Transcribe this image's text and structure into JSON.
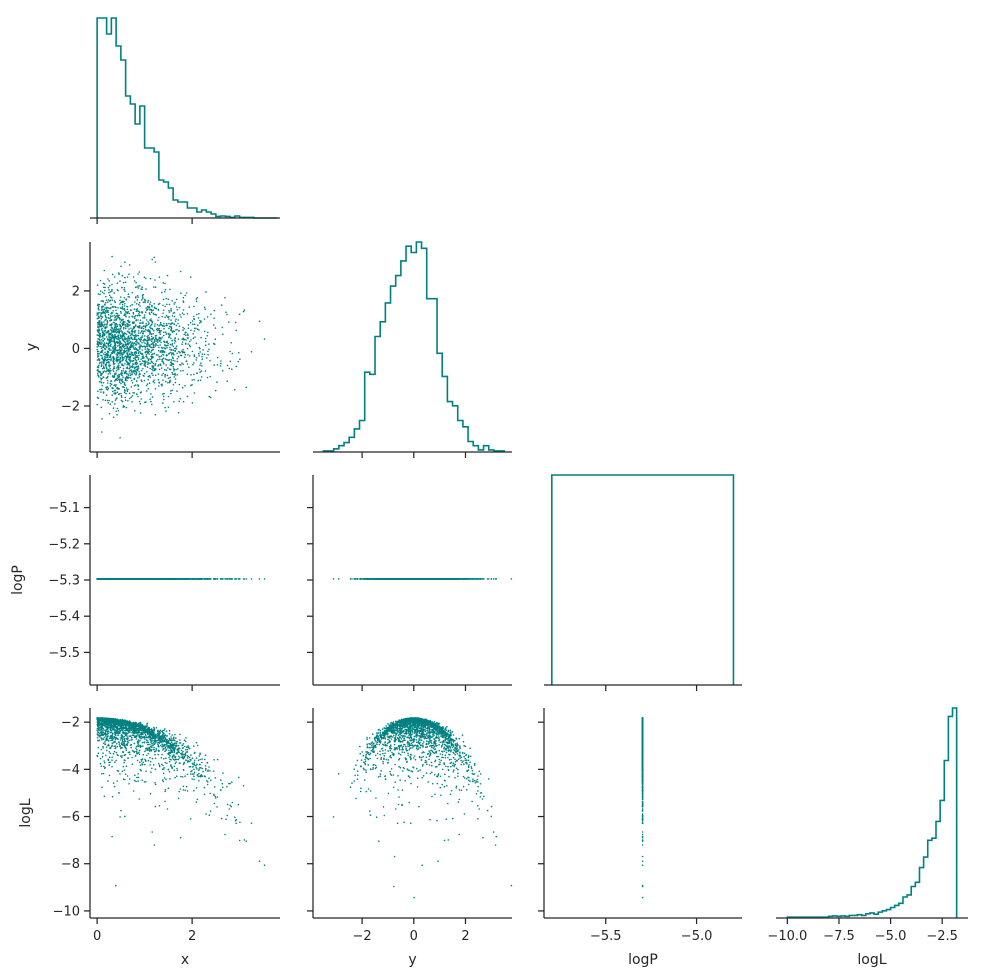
{
  "colors": {
    "series": "#008080",
    "axis": "#262626",
    "background": "#ffffff"
  },
  "chart_data": {
    "type": "scatter",
    "kind": "corner-pairplot",
    "variables": [
      "x",
      "y",
      "logP",
      "logL"
    ],
    "axis_labels": {
      "x_bottom": [
        "x",
        "y",
        "logP",
        "logL"
      ],
      "y_left": [
        "",
        "y",
        "logP",
        "logL"
      ]
    },
    "panels": [
      {
        "id": "hist-x",
        "type": "histogram-step",
        "variable": "x",
        "xlim": [
          -0.15,
          3.85
        ],
        "xticks": [
          0,
          2
        ],
        "xtick_labels": [],
        "bin_edges": [
          0,
          0.1,
          0.2,
          0.3,
          0.4,
          0.5,
          0.6,
          0.7,
          0.8,
          0.9,
          1.0,
          1.1,
          1.2,
          1.3,
          1.4,
          1.5,
          1.6,
          1.7,
          1.8,
          1.9,
          2.0,
          2.1,
          2.2,
          2.3,
          2.4,
          2.5,
          2.6,
          2.7,
          2.8,
          2.9,
          3.0,
          3.1,
          3.2,
          3.3,
          3.4,
          3.5,
          3.6,
          3.7,
          3.8
        ],
        "heights": [
          100,
          100,
          92,
          100,
          86,
          79,
          61,
          57,
          47,
          56,
          35,
          35,
          33,
          19,
          18,
          15,
          9,
          8,
          8,
          5,
          5,
          3,
          4,
          3,
          2,
          0.8,
          1,
          0.8,
          0.3,
          1,
          0.3,
          0.3,
          0.3,
          0,
          0,
          0,
          0,
          0
        ]
      },
      {
        "id": "scatter-x-y",
        "type": "scatter",
        "xvar": "x",
        "yvar": "y",
        "xlim": [
          -0.15,
          3.85
        ],
        "ylim": [
          -3.6,
          3.7
        ],
        "xticks": [
          0,
          2
        ],
        "xtick_labels": [],
        "yticks": [
          -2,
          0,
          2
        ],
        "ytick_labels": [
          "−2",
          "0",
          "2"
        ],
        "n_points": 2200
      },
      {
        "id": "hist-y",
        "type": "histogram-step",
        "variable": "y",
        "xlim": [
          -3.9,
          3.8
        ],
        "xticks": [
          -2,
          0,
          2
        ],
        "xtick_labels": [],
        "bin_edges": [
          -3.5,
          -3.3,
          -3.1,
          -2.9,
          -2.7,
          -2.5,
          -2.3,
          -2.1,
          -1.9,
          -1.7,
          -1.5,
          -1.3,
          -1.1,
          -0.9,
          -0.7,
          -0.5,
          -0.3,
          -0.1,
          0.1,
          0.3,
          0.5,
          0.7,
          0.9,
          1.1,
          1.3,
          1.5,
          1.7,
          1.9,
          2.1,
          2.3,
          2.5,
          2.7,
          2.9,
          3.1,
          3.3,
          3.5
        ],
        "heights": [
          0.5,
          0.5,
          1.5,
          3,
          4.5,
          7,
          11,
          15,
          38,
          37,
          55,
          62,
          71,
          79,
          84,
          91,
          98,
          95,
          100,
          97,
          73,
          73,
          47,
          36,
          24,
          22,
          15,
          12,
          5,
          3,
          1,
          3,
          1,
          0.5,
          0.5
        ]
      },
      {
        "id": "scatter-x-logP",
        "type": "scatter",
        "xvar": "x",
        "yvar": "logP",
        "xlim": [
          -0.15,
          3.85
        ],
        "ylim": [
          -5.59,
          -5.01
        ],
        "xticks": [
          0,
          2
        ],
        "xtick_labels": [],
        "yticks": [
          -5.5,
          -5.4,
          -5.3,
          -5.2,
          -5.1
        ],
        "ytick_labels": [
          "−5.5",
          "−5.4",
          "−5.3",
          "−5.2",
          "−5.1"
        ],
        "constant_y": -5.297,
        "n_points": 2200
      },
      {
        "id": "scatter-y-logP",
        "type": "scatter",
        "xvar": "y",
        "yvar": "logP",
        "xlim": [
          -3.9,
          3.8
        ],
        "ylim": [
          -5.59,
          -5.01
        ],
        "xticks": [
          -2,
          0,
          2
        ],
        "xtick_labels": [],
        "yticks": [
          -5.5,
          -5.4,
          -5.3,
          -5.2,
          -5.1
        ],
        "ytick_labels": [],
        "constant_y": -5.297,
        "n_points": 2200
      },
      {
        "id": "hist-logP",
        "type": "histogram-step",
        "variable": "logP",
        "xlim": [
          -5.84,
          -4.75
        ],
        "xticks": [
          -5.5,
          -5.0
        ],
        "xtick_labels": [],
        "bin_edges": [
          -5.797,
          -4.797
        ],
        "heights": [
          100
        ]
      },
      {
        "id": "scatter-x-logL",
        "type": "scatter",
        "xvar": "x",
        "yvar": "logL",
        "xlim": [
          -0.15,
          3.85
        ],
        "ylim": [
          -10.3,
          -1.4
        ],
        "xticks": [
          0,
          2
        ],
        "xtick_labels": [
          "0",
          "2"
        ],
        "yticks": [
          -10,
          -8,
          -6,
          -4,
          -2
        ],
        "ytick_labels": [
          "−10",
          "−8",
          "−6",
          "−4",
          "−2"
        ],
        "n_points": 2200
      },
      {
        "id": "scatter-y-logL",
        "type": "scatter",
        "xvar": "y",
        "yvar": "logL",
        "xlim": [
          -3.9,
          3.8
        ],
        "ylim": [
          -10.3,
          -1.4
        ],
        "xticks": [
          -2,
          0,
          2
        ],
        "xtick_labels": [
          "−2",
          "0",
          "2"
        ],
        "yticks": [
          -10,
          -8,
          -6,
          -4,
          -2
        ],
        "ytick_labels": [],
        "n_points": 2200
      },
      {
        "id": "scatter-logP-logL",
        "type": "scatter",
        "xvar": "logP",
        "yvar": "logL",
        "xlim": [
          -5.84,
          -4.75
        ],
        "ylim": [
          -10.3,
          -1.4
        ],
        "xticks": [
          -5.5,
          -5.0
        ],
        "xtick_labels": [
          "−5.5",
          "−5.0"
        ],
        "yticks": [
          -10,
          -8,
          -6,
          -4,
          -2
        ],
        "ytick_labels": [],
        "constant_x": -5.297,
        "n_points": 2200
      },
      {
        "id": "hist-logL",
        "type": "histogram-step",
        "variable": "logL",
        "xlim": [
          -10.55,
          -1.25
        ],
        "xticks": [
          -10,
          -7.5,
          -5,
          -2.5
        ],
        "xtick_labels": [
          "−10.0",
          "−7.5",
          "−5.0",
          "−2.5"
        ],
        "bin_edges": [
          -10.0,
          -9.8,
          -9.6,
          -9.4,
          -9.2,
          -9.0,
          -8.8,
          -8.6,
          -8.4,
          -8.2,
          -8.0,
          -7.8,
          -7.6,
          -7.4,
          -7.2,
          -7.0,
          -6.8,
          -6.6,
          -6.4,
          -6.2,
          -6.0,
          -5.8,
          -5.6,
          -5.4,
          -5.2,
          -5.0,
          -4.8,
          -4.6,
          -4.4,
          -4.2,
          -4.0,
          -3.8,
          -3.6,
          -3.4,
          -3.2,
          -3.0,
          -2.8,
          -2.6,
          -2.4,
          -2.2,
          -2.0,
          -1.8
        ],
        "heights": [
          0.4,
          0.4,
          0.4,
          0.4,
          0.4,
          0.4,
          0.4,
          0.4,
          0.4,
          0.4,
          0.8,
          1,
          0.8,
          1,
          0.8,
          1.2,
          1.2,
          1.6,
          1.2,
          2,
          2.4,
          1.8,
          2.8,
          3.4,
          4,
          5,
          6,
          7,
          10,
          11,
          15,
          17,
          24,
          29,
          37,
          38,
          46,
          56,
          75,
          96,
          100
        ]
      }
    ]
  }
}
